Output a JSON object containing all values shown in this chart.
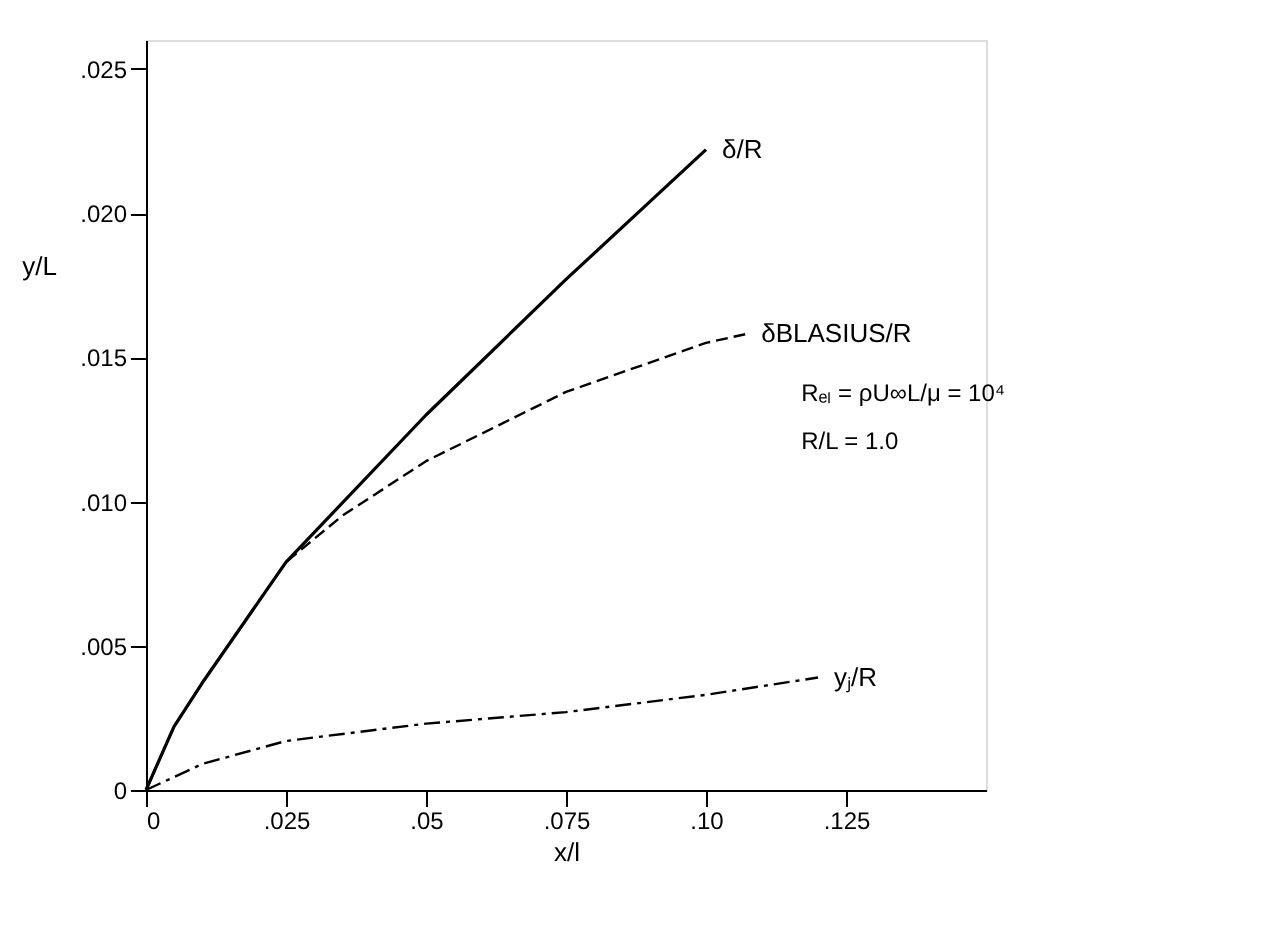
{
  "chart_data": {
    "type": "line",
    "xlabel": "x/l",
    "ylabel": "y/L",
    "xlim": [
      0,
      0.15
    ],
    "ylim": [
      0,
      0.026
    ],
    "xticks": [
      0,
      {
        "value": 0.025,
        "label": ".025"
      },
      {
        "value": 0.05,
        "label": ".05"
      },
      {
        "value": 0.075,
        "label": ".075"
      },
      {
        "value": 0.1,
        "label": ".10"
      },
      {
        "value": 0.125,
        "label": ".125"
      }
    ],
    "yticks": [
      0,
      {
        "value": 0.005,
        "label": ".005"
      },
      {
        "value": 0.01,
        "label": ".010"
      },
      {
        "value": 0.015,
        "label": ".015"
      },
      {
        "value": 0.02,
        "label": ".020"
      },
      {
        "value": 0.025,
        "label": ".025"
      }
    ],
    "grid": false,
    "marker": "none",
    "series": [
      {
        "name": "δ/R",
        "color": "#000000",
        "line_style": "solid",
        "x": [
          0,
          0.005,
          0.01,
          0.025,
          0.05,
          0.075,
          0.1
        ],
        "values": [
          0,
          0.0022,
          0.0037,
          0.0079,
          0.013,
          0.0177,
          0.0222
        ]
      },
      {
        "name": "δBLASIUS/R",
        "color": "#000000",
        "line_style": "dashed",
        "x": [
          0,
          0.005,
          0.01,
          0.025,
          0.035,
          0.05,
          0.075,
          0.1,
          0.107
        ],
        "values": [
          0,
          0.0022,
          0.0037,
          0.0079,
          0.0095,
          0.0114,
          0.0138,
          0.0155,
          0.0158
        ]
      },
      {
        "name": "yⱼ/R",
        "color": "#000000",
        "line_style": "dotted",
        "x": [
          0,
          0.01,
          0.025,
          0.05,
          0.075,
          0.1,
          0.12
        ],
        "values": [
          0,
          0.0009,
          0.0017,
          0.0023,
          0.0027,
          0.0033,
          0.0039
        ]
      }
    ],
    "annotations": [
      "Rₑₗ = ρU∞L/μ = 10⁴",
      "R/L = 1.0"
    ]
  }
}
